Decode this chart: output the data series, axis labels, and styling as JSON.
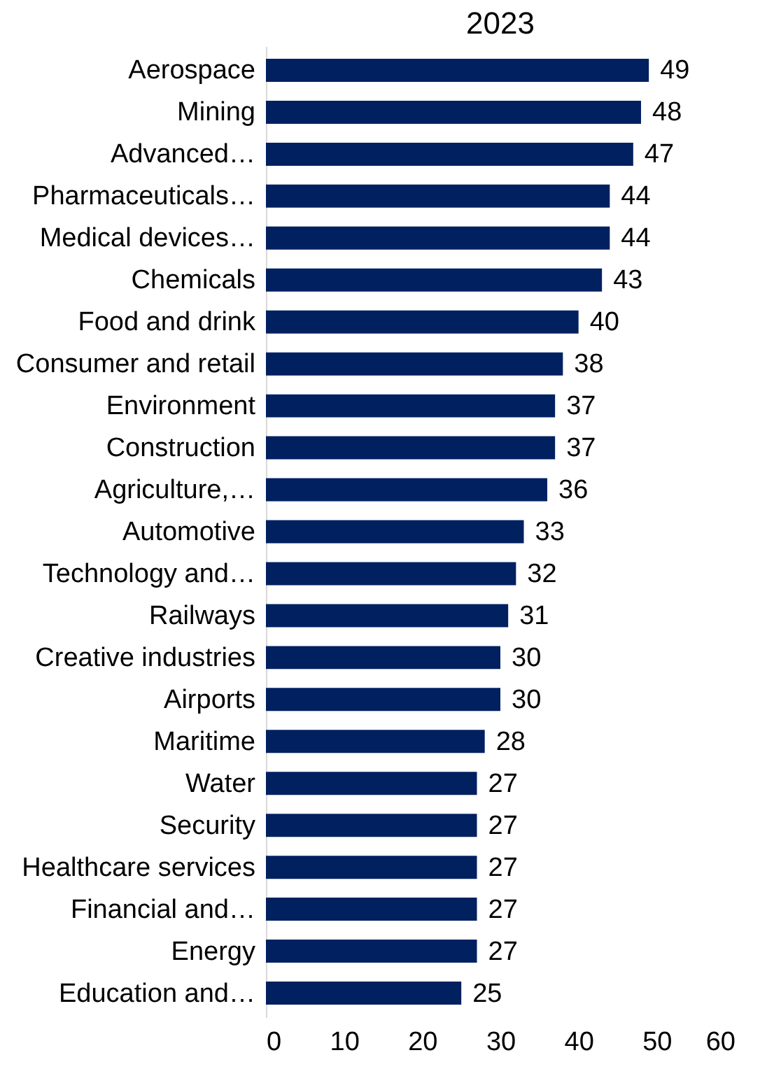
{
  "chart_data": {
    "type": "bar",
    "orientation": "horizontal",
    "title": "2023",
    "categories": [
      "Aerospace",
      "Mining",
      "Advanced…",
      "Pharmaceuticals…",
      "Medical devices…",
      "Chemicals",
      "Food and drink",
      "Consumer and retail",
      "Environment",
      "Construction",
      "Agriculture,…",
      "Automotive",
      "Technology and…",
      "Railways",
      "Creative industries",
      "Airports",
      "Maritime",
      "Water",
      "Security",
      "Healthcare services",
      "Financial and…",
      "Energy",
      "Education and…"
    ],
    "values": [
      49,
      48,
      47,
      44,
      44,
      43,
      40,
      38,
      37,
      37,
      36,
      33,
      32,
      31,
      30,
      30,
      28,
      27,
      27,
      27,
      27,
      27,
      25
    ],
    "color": "#002060",
    "xlim": [
      0,
      60
    ],
    "xticks": [
      0,
      10,
      20,
      30,
      40,
      50,
      60
    ],
    "data_labels": true,
    "grid": false
  }
}
